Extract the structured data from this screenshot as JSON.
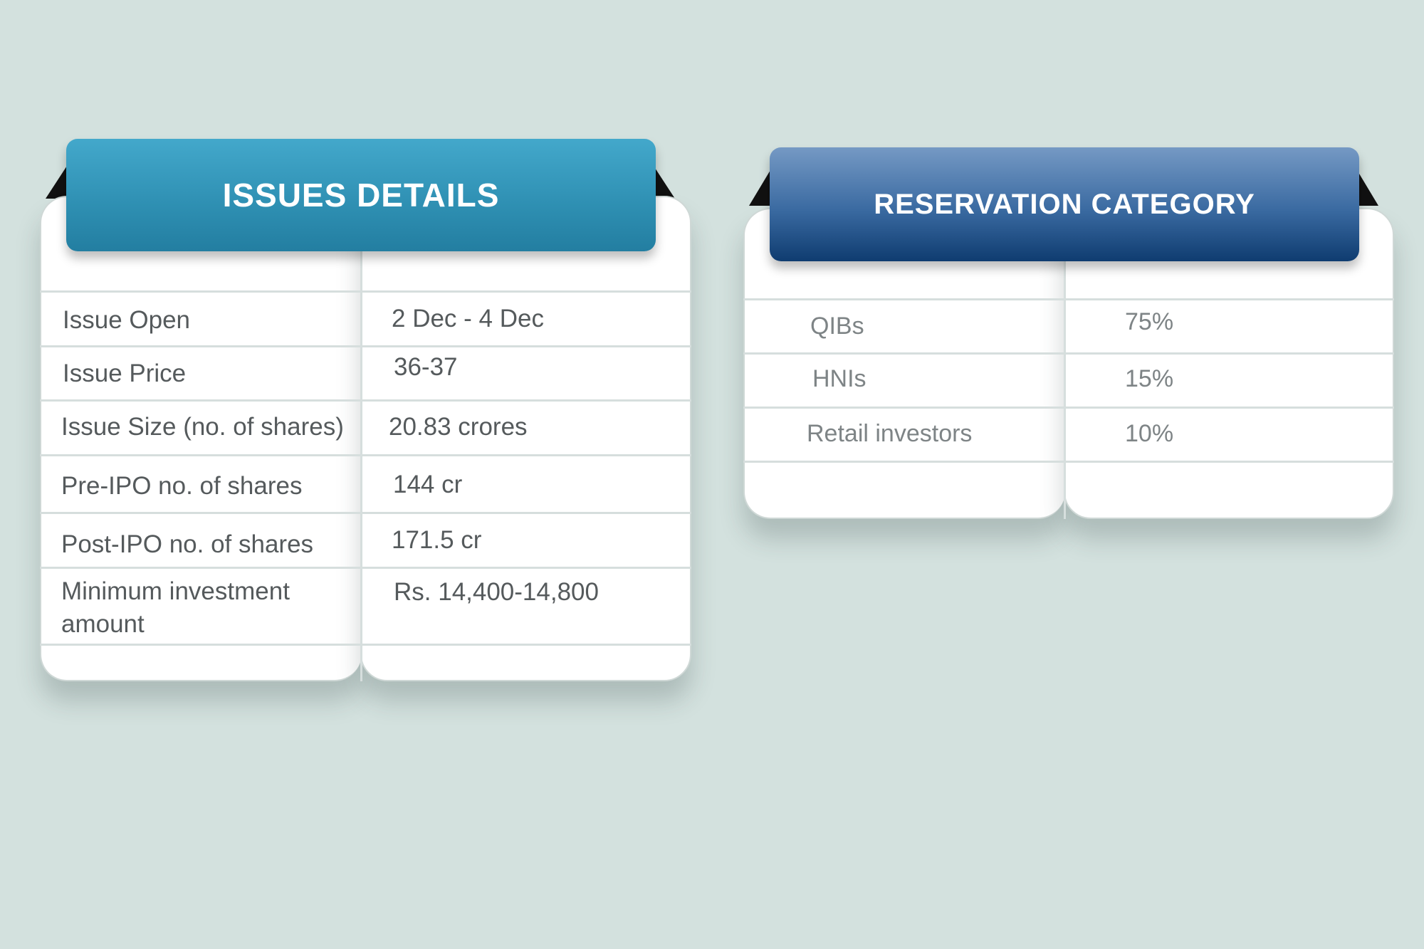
{
  "issues_details": {
    "title": "ISSUES DETAILS",
    "rows": [
      {
        "label": "Issue Open",
        "value": "2 Dec - 4 Dec"
      },
      {
        "label": "Issue Price",
        "value": "36-37"
      },
      {
        "label": "Issue Size (no. of shares)",
        "value": "20.83 crores"
      },
      {
        "label": "Pre-IPO no. of shares",
        "value": "144 cr"
      },
      {
        "label": "Post-IPO no. of shares",
        "value": "171.5 cr"
      },
      {
        "label": "Minimum investment amount",
        "value": "Rs. 14,400-14,800"
      }
    ]
  },
  "reservation_category": {
    "title": "RESERVATION CATEGORY",
    "rows": [
      {
        "label": "QIBs",
        "value": "75%"
      },
      {
        "label": "HNIs",
        "value": "15%"
      },
      {
        "label": "Retail investors",
        "value": "10%"
      }
    ]
  },
  "colors": {
    "background": "#d3e1de",
    "issues_banner": "#2e8fb2",
    "reservation_banner": "#1f4f86",
    "table_text": "#555a5c"
  }
}
